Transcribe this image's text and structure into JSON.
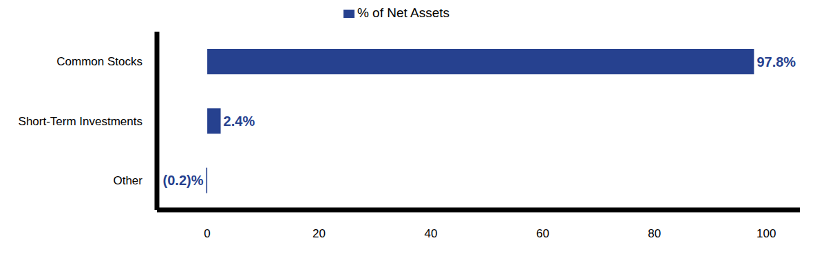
{
  "chart_data": {
    "type": "bar",
    "orientation": "horizontal",
    "categories": [
      "Common Stocks",
      "Short-Term Investments",
      "Other"
    ],
    "series": [
      {
        "name": "% of Net Assets",
        "color": "#26418f",
        "values": [
          97.8,
          2.4,
          -0.2
        ],
        "value_labels": [
          "97.8%",
          "2.4%",
          "(0.2)%"
        ]
      }
    ],
    "xlim": [
      -9,
      106
    ],
    "xticks": [
      0,
      20,
      40,
      60,
      80,
      100
    ],
    "grid": false,
    "legend": "top",
    "data_labels": true
  }
}
